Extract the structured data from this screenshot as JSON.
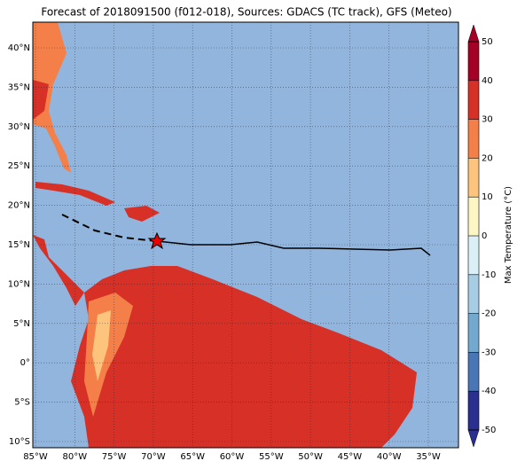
{
  "map": {
    "title": "Forecast of 2018091500 (f012-018), Sources: GDACS (TC track), GFS (Meteo)",
    "lon_ticks": [
      {
        "value": -85,
        "label": "85°W"
      },
      {
        "value": -80,
        "label": "80°W"
      },
      {
        "value": -75,
        "label": "75°W"
      },
      {
        "value": -70,
        "label": "70°W"
      },
      {
        "value": -65,
        "label": "65°W"
      },
      {
        "value": -60,
        "label": "60°W"
      },
      {
        "value": -55,
        "label": "55°W"
      },
      {
        "value": -50,
        "label": "50°W"
      },
      {
        "value": -45,
        "label": "45°W"
      },
      {
        "value": -40,
        "label": "40°W"
      },
      {
        "value": -35,
        "label": "35°W"
      }
    ],
    "lat_ticks": [
      {
        "value": 40,
        "label": "40°N"
      },
      {
        "value": 35,
        "label": "35°N"
      },
      {
        "value": 30,
        "label": "30°N"
      },
      {
        "value": 25,
        "label": "25°N"
      },
      {
        "value": 20,
        "label": "20°N"
      },
      {
        "value": 15,
        "label": "15°N"
      },
      {
        "value": 10,
        "label": "10°N"
      },
      {
        "value": 5,
        "label": "5°N"
      },
      {
        "value": 0,
        "label": "0°"
      },
      {
        "value": -5,
        "label": "5°S"
      },
      {
        "value": -10,
        "label": "10°S"
      }
    ],
    "colorbar": {
      "label": "Max Temperature (°C)",
      "ticks": [
        -50,
        -40,
        -30,
        -20,
        -10,
        0,
        10,
        20,
        30,
        40,
        50
      ],
      "colors": [
        "#2b2f8f",
        "#4a76b6",
        "#74a9cf",
        "#a6cde3",
        "#dbeff6",
        "#fdf5c4",
        "#fdc47d",
        "#f57f48",
        "#d73027",
        "#a50026"
      ]
    }
  }
}
